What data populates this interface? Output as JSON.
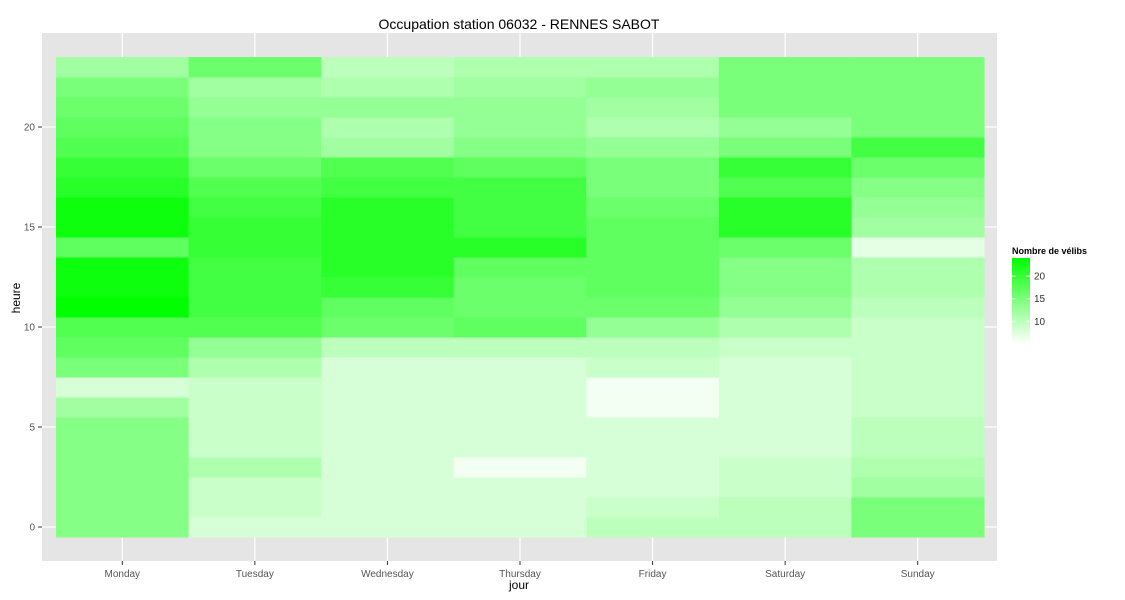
{
  "chart_data": {
    "type": "heatmap",
    "title": "Occupation station 06032 - RENNES SABOT",
    "xlabel": "jour",
    "ylabel": "heure",
    "categories": [
      "Monday",
      "Tuesday",
      "Wednesday",
      "Thursday",
      "Friday",
      "Saturday",
      "Sunday"
    ],
    "hours": [
      0,
      1,
      2,
      3,
      4,
      5,
      6,
      7,
      8,
      9,
      10,
      11,
      12,
      13,
      14,
      15,
      16,
      17,
      18,
      19,
      20,
      21,
      22,
      23
    ],
    "y_ticks": [
      0,
      5,
      10,
      15,
      20
    ],
    "ylim": [
      -0.5,
      23.5
    ],
    "grid": true,
    "values": [
      [
        14,
        8,
        8,
        8,
        10,
        10,
        15
      ],
      [
        14,
        9,
        8,
        8,
        9,
        10,
        15
      ],
      [
        14,
        9,
        8,
        8,
        8,
        9,
        12
      ],
      [
        14,
        11,
        8,
        6,
        8,
        9,
        11
      ],
      [
        14,
        9,
        8,
        8,
        8,
        8,
        10
      ],
      [
        14,
        9,
        8,
        8,
        8,
        8,
        10
      ],
      [
        12,
        9,
        8,
        8,
        6,
        8,
        9
      ],
      [
        8,
        9,
        8,
        8,
        6,
        8,
        9
      ],
      [
        15,
        11,
        8,
        8,
        9,
        8,
        9
      ],
      [
        17,
        13,
        10,
        10,
        10,
        9,
        9
      ],
      [
        18,
        18,
        16,
        17,
        13,
        11,
        9
      ],
      [
        24,
        19,
        17,
        16,
        16,
        13,
        10
      ],
      [
        23,
        19,
        20,
        16,
        17,
        14,
        11
      ],
      [
        23,
        19,
        21,
        17,
        17,
        14,
        11
      ],
      [
        17,
        20,
        21,
        21,
        17,
        16,
        7
      ],
      [
        23,
        20,
        21,
        19,
        17,
        21,
        12
      ],
      [
        23,
        19,
        21,
        19,
        16,
        21,
        13
      ],
      [
        21,
        18,
        19,
        19,
        15,
        18,
        14
      ],
      [
        20,
        16,
        18,
        17,
        15,
        20,
        16
      ],
      [
        18,
        14,
        12,
        14,
        13,
        15,
        19
      ],
      [
        17,
        14,
        11,
        13,
        11,
        13,
        15
      ],
      [
        16,
        13,
        13,
        13,
        12,
        15,
        15
      ],
      [
        15,
        12,
        11,
        12,
        13,
        15,
        15
      ],
      [
        12,
        16,
        10,
        11,
        11,
        15,
        15
      ]
    ],
    "legend": {
      "title": "Nombre de vélibs",
      "ticks": [
        10,
        15,
        20
      ],
      "range": [
        5,
        24
      ],
      "placement": "right"
    },
    "colors": {
      "low": "#ffffff",
      "high": "#00ff00",
      "panel": "#e5e5e5",
      "grid": "#ffffff"
    }
  }
}
